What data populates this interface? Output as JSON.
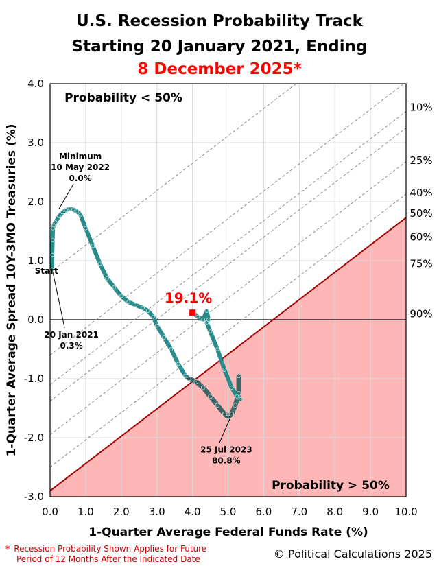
{
  "title_lines": [
    "U.S. Recession Probability Track",
    "Starting 20 January 2021, Ending",
    "8 December 2025*"
  ],
  "footnote": {
    "marker": "*",
    "line1": "Recession Probability Shown Applies for Future",
    "line2": "Period of 12 Months After the Indicated Date"
  },
  "credit": "© Political Calculations 2025",
  "colors": {
    "track": "#2a8c8a",
    "track_late": "#3d6565",
    "shade": "#ffb6b6",
    "fifty_line": "#a50000",
    "highlight": "#ff0000"
  },
  "chart_data": {
    "type": "line",
    "xlabel": "1-Quarter Average Federal Funds Rate (%)",
    "ylabel": "1-Quarter Average Spread 10Y-3MO Treasuries (%)",
    "xlim": [
      0,
      10
    ],
    "ylim": [
      -3,
      4
    ],
    "x_ticks": [
      "0.0",
      "1.0",
      "2.0",
      "3.0",
      "4.0",
      "5.0",
      "6.0",
      "7.0",
      "8.0",
      "9.0",
      "10.0"
    ],
    "y_ticks": [
      "-3.0",
      "-2.0",
      "-1.0",
      "0.0",
      "1.0",
      "2.0",
      "3.0",
      "4.0"
    ],
    "grid": true,
    "region_labels": {
      "above": "Probability < 50%",
      "below": "Probability > 50%"
    },
    "probability_lines": [
      {
        "label": "10%",
        "intercept": 0.8,
        "highlight": false
      },
      {
        "label": "25%",
        "intercept": -0.6,
        "highlight": false
      },
      {
        "label": "40%",
        "intercept": -1.38,
        "highlight": false
      },
      {
        "label": "50%",
        "intercept": -2.9,
        "highlight": true
      },
      {
        "label": "60%",
        "intercept": -2.5,
        "highlight": false
      },
      {
        "label": "75%",
        "intercept": -1.95,
        "highlight": false
      },
      {
        "label": "90%",
        "intercept": -1.1,
        "highlight": false
      }
    ],
    "probability_label_y": [
      3.6,
      2.7,
      2.15,
      1.8,
      1.4,
      0.95,
      0.1
    ],
    "fifty_line": {
      "x": [
        0,
        10
      ],
      "y": [
        -2.9,
        1.73
      ]
    },
    "track": {
      "x": [
        0.05,
        0.06,
        0.07,
        0.08,
        0.1,
        0.15,
        0.25,
        0.35,
        0.45,
        0.55,
        0.65,
        0.75,
        0.85,
        1.0,
        1.2,
        1.4,
        1.6,
        1.8,
        2.0,
        2.2,
        2.4,
        2.6,
        2.75,
        2.9,
        3.0,
        3.2,
        3.4,
        3.6,
        3.8,
        3.9
      ],
      "y": [
        0.85,
        1.1,
        1.35,
        1.55,
        1.6,
        1.65,
        1.75,
        1.82,
        1.86,
        1.88,
        1.87,
        1.84,
        1.78,
        1.55,
        1.25,
        0.95,
        0.7,
        0.55,
        0.4,
        0.3,
        0.25,
        0.2,
        0.15,
        0.05,
        -0.1,
        -0.3,
        -0.5,
        -0.75,
        -0.95,
        -1.0
      ]
    },
    "track_late": {
      "x": [
        3.9,
        4.1,
        4.3,
        4.5,
        4.7,
        4.9,
        5.0,
        5.1,
        5.2,
        5.3,
        5.3
      ],
      "y": [
        -1.0,
        -1.05,
        -1.15,
        -1.3,
        -1.45,
        -1.6,
        -1.65,
        -1.6,
        -1.45,
        -1.25,
        -0.95
      ]
    },
    "track_recent": {
      "x": [
        4.05,
        4.15,
        4.3,
        4.4,
        4.45,
        4.4,
        4.5,
        4.7,
        4.9,
        5.1,
        5.25,
        5.35
      ],
      "y": [
        0.1,
        0.05,
        0.0,
        0.15,
        0.0,
        -0.05,
        -0.2,
        -0.5,
        -0.85,
        -1.15,
        -1.3,
        -1.35
      ]
    },
    "current_point": {
      "x": 4.0,
      "y": 0.12,
      "label": "19.1%"
    },
    "annotations": [
      {
        "id": "minimum",
        "lines": [
          "Minimum",
          "10 May 2022",
          "0.0%"
        ],
        "x": 0.85,
        "y": 2.72,
        "target_x": 0.25,
        "target_y": 1.88
      },
      {
        "id": "start",
        "lines": [
          "Start"
        ],
        "x": -0.1,
        "y": 0.78,
        "target_x": 0.05,
        "target_y": 0.85
      },
      {
        "id": "jan2021",
        "lines": [
          "20 Jan 2021",
          "0.3%"
        ],
        "x": 0.6,
        "y": -0.3,
        "target_x": 0.08,
        "target_y": 0.8
      },
      {
        "id": "jul2023",
        "lines": [
          "25 Jul 2023",
          "80.8%"
        ],
        "x": 4.95,
        "y": -2.25,
        "target_x": 5.05,
        "target_y": -1.68
      }
    ]
  }
}
